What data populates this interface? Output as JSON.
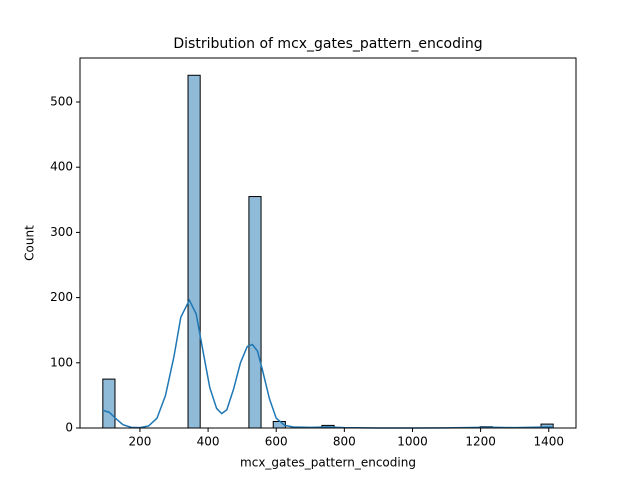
{
  "chart_data": {
    "type": "histogram",
    "title": "Distribution of mcx_gates_pattern_encoding",
    "x_label": "mcx_gates_pattern_encoding",
    "y_label": "Count",
    "bins": [
      91,
      126.7,
      162.5,
      198.2,
      233.9,
      269.7,
      305.4,
      341.1,
      376.8,
      412.6,
      448.3,
      484,
      519.8,
      555.5,
      591.2,
      626.9,
      662.7,
      698.4,
      734.1,
      769.9,
      805.6,
      841.3,
      877.1,
      912.8,
      948.5,
      984.2,
      1020,
      1055.7,
      1091.4,
      1127.2,
      1162.9,
      1198.6,
      1234.4,
      1270.1,
      1305.8,
      1341.5,
      1377.3,
      1413
    ],
    "counts": [
      75,
      0,
      0,
      0,
      0,
      0,
      0,
      541,
      0,
      0,
      0,
      0,
      355,
      0,
      10,
      0,
      0,
      0,
      4,
      0,
      0,
      0,
      0,
      0,
      0,
      0,
      0,
      0,
      0,
      0,
      0,
      2,
      0,
      0,
      0,
      0,
      6
    ],
    "color": "#1f77b4",
    "kde": {
      "color": "#1f77b4",
      "x": [
        91,
        110,
        130,
        150,
        175,
        200,
        225,
        250,
        275,
        300,
        320,
        345,
        365,
        385,
        405,
        425,
        440,
        455,
        475,
        495,
        515,
        530,
        545,
        560,
        580,
        600,
        625,
        650,
        700,
        750,
        800,
        900,
        1000,
        1100,
        1200,
        1230,
        1300,
        1400,
        1413
      ],
      "y": [
        27,
        24,
        14,
        5,
        1,
        0.5,
        3,
        15,
        50,
        110,
        170,
        196,
        175,
        118,
        62,
        30,
        22,
        28,
        60,
        100,
        125,
        128,
        118,
        88,
        45,
        15,
        4,
        1.5,
        1,
        1.5,
        0.5,
        0,
        0,
        0.2,
        1,
        1.2,
        0.5,
        1.5,
        1.2
      ]
    },
    "xlim": [
      24,
      1480
    ],
    "ylim": [
      0,
      567.5
    ],
    "xticks": [
      200,
      400,
      600,
      800,
      1000,
      1200,
      1400
    ],
    "yticks": [
      0,
      100,
      200,
      300,
      400,
      500
    ]
  }
}
